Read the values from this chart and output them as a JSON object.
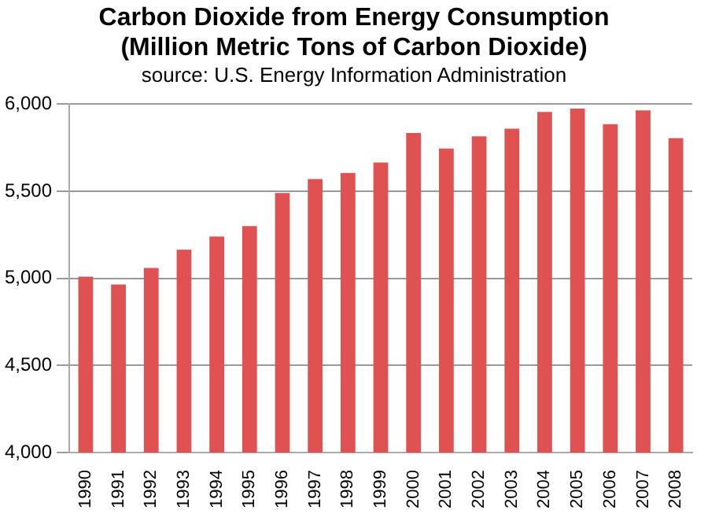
{
  "chart_data": {
    "type": "bar",
    "title": "Carbon Dioxide from Energy Consumption\n(Million Metric Tons of Carbon Dioxide)",
    "subtitle": "source: U.S. Energy Information Administration",
    "categories": [
      "1990",
      "1991",
      "1992",
      "1993",
      "1994",
      "1995",
      "1996",
      "1997",
      "1998",
      "1999",
      "2000",
      "2001",
      "2002",
      "2003",
      "2004",
      "2005",
      "2006",
      "2007",
      "2008"
    ],
    "values": [
      5010,
      4965,
      5060,
      5165,
      5240,
      5300,
      5490,
      5570,
      5605,
      5665,
      5835,
      5745,
      5815,
      5860,
      5955,
      5975,
      5885,
      5965,
      5805
    ],
    "color": "#e05252",
    "ylim": [
      4000,
      6000
    ],
    "yticks": [
      {
        "value": 4000,
        "label": "4,000"
      },
      {
        "value": 4500,
        "label": "4,500"
      },
      {
        "value": 5000,
        "label": "5,000"
      },
      {
        "value": 5500,
        "label": "5,500"
      },
      {
        "value": 6000,
        "label": "6,000"
      }
    ],
    "grid": "y"
  }
}
